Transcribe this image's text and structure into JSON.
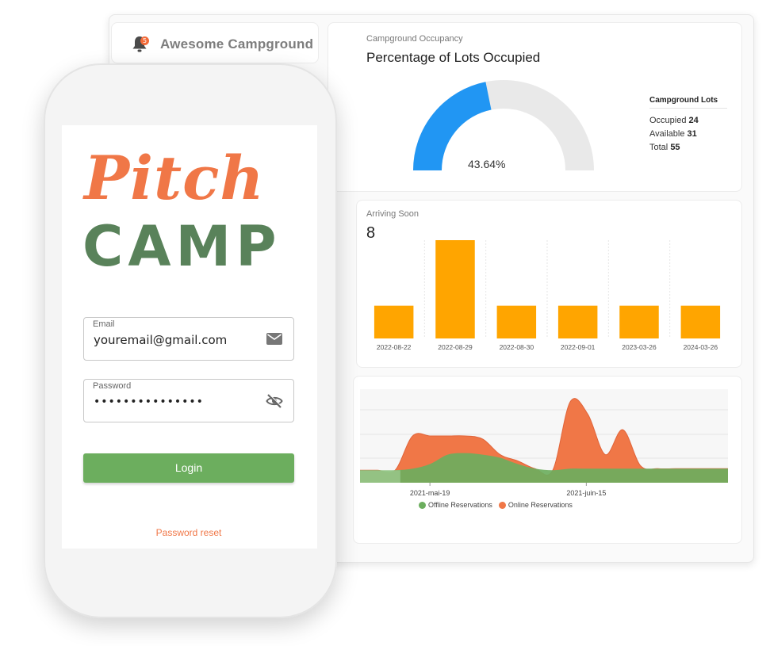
{
  "dashboard": {
    "brand": {
      "name": "Awesome Campground",
      "notification_count": "5"
    },
    "occupancy": {
      "subtitle": "Campground Occupancy",
      "title": "Percentage of Lots Occupied",
      "percent_label": "43.64%",
      "fraction_occupied": 0.4364,
      "lots": {
        "title": "Campground Lots",
        "occupied_label": "Occupied",
        "occupied_value": "24",
        "available_label": "Available",
        "available_value": "31",
        "total_label": "Total",
        "total_value": "55"
      }
    },
    "arriving": {
      "subtitle": "Arriving Soon",
      "count": "8"
    },
    "reservations": {
      "legend_offline": "Offline Reservations",
      "legend_online": "Online Reservations"
    }
  },
  "colors": {
    "gauge_fill": "#2196f3",
    "gauge_track": "#e9e9e9",
    "bar": "#ffa500",
    "offline": "#6cae5e",
    "online": "#f07747",
    "login": "#6cae5e",
    "logo_pitch": "#f07747",
    "logo_camp": "#59825a"
  },
  "chart_data": [
    {
      "type": "bar",
      "title": "Arriving Soon",
      "categories": [
        "2022-08-22",
        "2022-08-29",
        "2022-08-30",
        "2022-09-01",
        "2023-03-26",
        "2024-03-26"
      ],
      "values": [
        1,
        3,
        1,
        1,
        1,
        1
      ],
      "ylim": [
        0,
        3
      ]
    },
    {
      "type": "area",
      "x_ticks": [
        "2021-mai-19",
        "2021-juin-15"
      ],
      "series": [
        {
          "name": "Offline Reservations",
          "values": [
            0.4,
            0.4,
            0.4,
            0.45,
            0.6,
            0.9,
            0.95,
            0.9,
            0.8,
            0.6,
            0.45,
            0.4,
            0.45,
            0.45,
            0.45,
            0.45,
            0.45,
            0.45,
            0.45,
            0.45,
            0.45,
            0.45
          ]
        },
        {
          "name": "Online Reservations",
          "values": [
            0,
            0,
            0,
            1.5,
            1.5,
            1.5,
            1.5,
            1.4,
            0.9,
            0.7,
            0.45,
            0.4,
            2.6,
            2.2,
            0.9,
            1.7,
            0.55,
            0.45,
            0.45,
            0.45,
            0.45,
            0.45
          ]
        }
      ]
    }
  ],
  "phone": {
    "logo_top": "Pitch",
    "logo_bottom": "CAMP",
    "email": {
      "label": "Email",
      "value": "youremail@gmail.com"
    },
    "password": {
      "label": "Password",
      "value": "•••••••••••••••"
    },
    "login_label": "Login",
    "reset_label": "Password reset"
  }
}
